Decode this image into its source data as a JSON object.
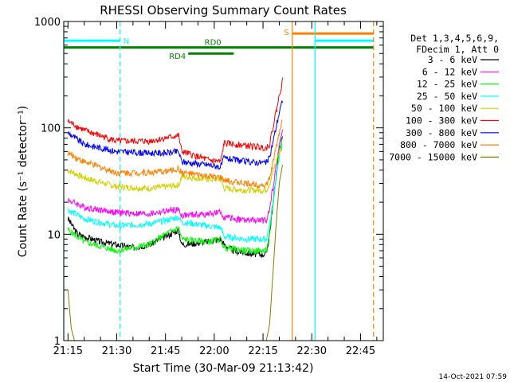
{
  "chart_data": {
    "type": "line",
    "title": "RHESSI Observing Summary Count Rates",
    "xlabel": "Start Time (30-Mar-09 21:13:42)",
    "ylabel": "Count Rate (s⁻¹ detector⁻¹)",
    "y_scale": "log",
    "ylim": [
      1,
      1000
    ],
    "xlim": [
      "21:13:42",
      "22:52:00"
    ],
    "x_ticks": [
      "21:15",
      "21:30",
      "21:45",
      "22:00",
      "22:15",
      "22:30",
      "22:45"
    ],
    "y_ticks": [
      "1",
      "10",
      "100",
      "1000"
    ],
    "legend_position": "right",
    "legend_header": [
      "Det 1,3,4,5,6,9,",
      "FDecim 1, Att 0"
    ],
    "series": [
      {
        "name": "3 - 6 keV",
        "color": "#000000",
        "points": [
          [
            "21:15",
            14
          ],
          [
            "21:18",
            10
          ],
          [
            "21:25",
            8.5
          ],
          [
            "21:35",
            7.5
          ],
          [
            "21:40",
            8
          ],
          [
            "21:45",
            9.5
          ],
          [
            "21:49",
            11
          ],
          [
            "21:50",
            8
          ],
          [
            "21:58",
            8.5
          ],
          [
            "22:02",
            9
          ],
          [
            "22:03",
            8
          ],
          [
            "22:06",
            7
          ],
          [
            "22:12",
            6.5
          ],
          [
            "22:16",
            6.5
          ],
          [
            "22:17",
            10
          ],
          [
            "22:20",
            65
          ],
          [
            "22:21",
            80
          ]
        ]
      },
      {
        "name": "6 - 12 keV",
        "color": "#ff00ff",
        "points": [
          [
            "21:15",
            21
          ],
          [
            "21:20",
            18
          ],
          [
            "21:30",
            16
          ],
          [
            "21:40",
            15.5
          ],
          [
            "21:45",
            16.5
          ],
          [
            "21:49",
            17
          ],
          [
            "21:50",
            15
          ],
          [
            "21:58",
            15.5
          ],
          [
            "22:02",
            16
          ],
          [
            "22:03",
            14.5
          ],
          [
            "22:10",
            13.5
          ],
          [
            "22:16",
            13.5
          ],
          [
            "22:17",
            17
          ],
          [
            "22:20",
            70
          ],
          [
            "22:21",
            90
          ]
        ]
      },
      {
        "name": "12 - 25 keV",
        "color": "#00ff00",
        "points": [
          [
            "21:15",
            11
          ],
          [
            "21:20",
            8.5
          ],
          [
            "21:30",
            7
          ],
          [
            "21:40",
            8
          ],
          [
            "21:45",
            10
          ],
          [
            "21:49",
            11.5
          ],
          [
            "21:50",
            9
          ],
          [
            "21:58",
            8.5
          ],
          [
            "22:02",
            9
          ],
          [
            "22:03",
            7.5
          ],
          [
            "22:10",
            7
          ],
          [
            "22:16",
            7
          ],
          [
            "22:17",
            10
          ],
          [
            "22:20",
            60
          ],
          [
            "22:21",
            80
          ]
        ]
      },
      {
        "name": "25 - 50 keV",
        "color": "#00ffff",
        "points": [
          [
            "21:15",
            17
          ],
          [
            "21:20",
            14
          ],
          [
            "21:30",
            12
          ],
          [
            "21:40",
            12.5
          ],
          [
            "21:45",
            13.5
          ],
          [
            "21:49",
            14.5
          ],
          [
            "21:50",
            13
          ],
          [
            "21:58",
            12
          ],
          [
            "22:02",
            11.5
          ],
          [
            "22:03",
            9.5
          ],
          [
            "22:10",
            9
          ],
          [
            "22:16",
            9
          ],
          [
            "22:17",
            12
          ],
          [
            "22:20",
            55
          ],
          [
            "22:21",
            70
          ]
        ]
      },
      {
        "name": "50 - 100 keV",
        "color": "#d0d000",
        "points": [
          [
            "21:15",
            40
          ],
          [
            "21:20",
            34
          ],
          [
            "21:30",
            28
          ],
          [
            "21:40",
            27
          ],
          [
            "21:45",
            28
          ],
          [
            "21:49",
            29
          ],
          [
            "21:50",
            35
          ],
          [
            "21:58",
            33
          ],
          [
            "22:02",
            33
          ],
          [
            "22:03",
            27
          ],
          [
            "22:10",
            26
          ],
          [
            "22:16",
            26
          ],
          [
            "22:17",
            30
          ],
          [
            "22:20",
            60
          ],
          [
            "22:21",
            65
          ]
        ]
      },
      {
        "name": "100 - 300 keV",
        "color": "#ff0000",
        "points": [
          [
            "21:15",
            115
          ],
          [
            "21:20",
            95
          ],
          [
            "21:30",
            75
          ],
          [
            "21:40",
            75
          ],
          [
            "21:45",
            80
          ],
          [
            "21:49",
            85
          ],
          [
            "21:50",
            60
          ],
          [
            "21:58",
            50
          ],
          [
            "22:02",
            48
          ],
          [
            "22:03",
            72
          ],
          [
            "22:10",
            68
          ],
          [
            "22:16",
            65
          ],
          [
            "22:17",
            70
          ],
          [
            "22:20",
            200
          ],
          [
            "22:21",
            280
          ]
        ]
      },
      {
        "name": "300 - 800 keV",
        "color": "#0000ff",
        "points": [
          [
            "21:15",
            90
          ],
          [
            "21:20",
            70
          ],
          [
            "21:30",
            60
          ],
          [
            "21:40",
            58
          ],
          [
            "21:45",
            58
          ],
          [
            "21:49",
            60
          ],
          [
            "21:50",
            48
          ],
          [
            "21:58",
            45
          ],
          [
            "22:02",
            43
          ],
          [
            "22:03",
            52
          ],
          [
            "22:10",
            48
          ],
          [
            "22:16",
            47
          ],
          [
            "22:17",
            52
          ],
          [
            "22:20",
            140
          ],
          [
            "22:21",
            180
          ]
        ]
      },
      {
        "name": "800 - 7000 keV",
        "color": "#ff8000",
        "points": [
          [
            "21:15",
            58
          ],
          [
            "21:20",
            48
          ],
          [
            "21:30",
            38
          ],
          [
            "21:40",
            38
          ],
          [
            "21:45",
            39
          ],
          [
            "21:49",
            41
          ],
          [
            "21:50",
            38
          ],
          [
            "21:58",
            35
          ],
          [
            "22:02",
            34
          ],
          [
            "22:03",
            32
          ],
          [
            "22:10",
            30
          ],
          [
            "22:16",
            29
          ],
          [
            "22:17",
            33
          ],
          [
            "22:20",
            90
          ],
          [
            "22:21",
            120
          ]
        ]
      },
      {
        "name": "7000 - 15000 keV",
        "color": "#808000",
        "points": [
          [
            "21:15",
            3
          ],
          [
            "21:16",
            1.3
          ],
          [
            "21:17",
            1
          ],
          [
            "22:16",
            1
          ],
          [
            "22:17",
            1.4
          ],
          [
            "22:18",
            4
          ],
          [
            "22:19",
            12
          ],
          [
            "22:20",
            30
          ],
          [
            "22:21",
            45
          ]
        ]
      }
    ],
    "bands": [
      {
        "label": "N",
        "color": "#00ffff",
        "y": 660,
        "start": "21:13:42",
        "end": "21:31"
      },
      {
        "label": "",
        "color": "#00ffff",
        "y": 660,
        "start": "22:31",
        "end": "22:49"
      },
      {
        "label": "S",
        "color": "#ff8000",
        "y": 770,
        "start": "22:24",
        "end": "22:49"
      },
      {
        "label": "RD0",
        "color": "#008000",
        "y": 570,
        "start": "21:13:42",
        "end": "22:49"
      },
      {
        "label": "RD4",
        "color": "#008000",
        "y": 500,
        "start": "21:52",
        "end": "22:06"
      }
    ],
    "vlines": [
      {
        "t": "21:13:42",
        "color": "#00ffff",
        "style": "solid"
      },
      {
        "t": "21:31",
        "color": "#00ffff",
        "style": "dashed"
      },
      {
        "t": "22:24",
        "color": "#ff8000",
        "style": "solid"
      },
      {
        "t": "22:31",
        "color": "#00ffff",
        "style": "solid"
      },
      {
        "t": "22:49",
        "color": "#ff8000",
        "style": "dashed"
      }
    ]
  },
  "footer": {
    "timestamp": "14-Oct-2021 07:59"
  }
}
